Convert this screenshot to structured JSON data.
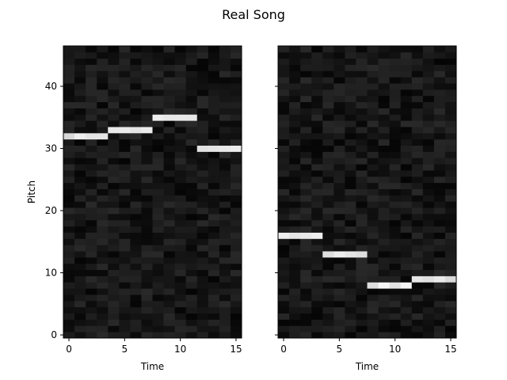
{
  "chart_data": {
    "type": "heatmap",
    "title": "Real Song",
    "colormap": "gray",
    "shared_y": true,
    "panels": [
      {
        "name": "left",
        "xlabel": "Time",
        "ylabel": "Pitch",
        "xlim": [
          -0.5,
          15.5
        ],
        "ylim": [
          -0.5,
          46.5
        ],
        "xticks": [
          0,
          5,
          10,
          15
        ],
        "yticks": [
          0,
          10,
          20,
          30,
          40
        ],
        "background_intensity_range": [
          0.02,
          0.16
        ],
        "notes": [
          {
            "pitch": 32,
            "start": 0,
            "end": 3,
            "intensity": 0.9
          },
          {
            "pitch": 33,
            "start": 4,
            "end": 7,
            "intensity": 0.88
          },
          {
            "pitch": 35,
            "start": 8,
            "end": 11,
            "intensity": 0.92
          },
          {
            "pitch": 30,
            "start": 12,
            "end": 15,
            "intensity": 0.9
          }
        ]
      },
      {
        "name": "right",
        "xlabel": "Time",
        "ylabel": "",
        "xlim": [
          -0.5,
          15.5
        ],
        "ylim": [
          -0.5,
          46.5
        ],
        "xticks": [
          0,
          5,
          10,
          15
        ],
        "yticks": [
          0,
          10,
          20,
          30,
          40
        ],
        "background_intensity_range": [
          0.02,
          0.16
        ],
        "notes": [
          {
            "pitch": 16,
            "start": 0,
            "end": 3,
            "intensity": 0.9
          },
          {
            "pitch": 13,
            "start": 4,
            "end": 7,
            "intensity": 0.88
          },
          {
            "pitch": 8,
            "start": 8,
            "end": 11,
            "intensity": 0.92
          },
          {
            "pitch": 9,
            "start": 12,
            "end": 15,
            "intensity": 0.9
          }
        ]
      }
    ]
  }
}
